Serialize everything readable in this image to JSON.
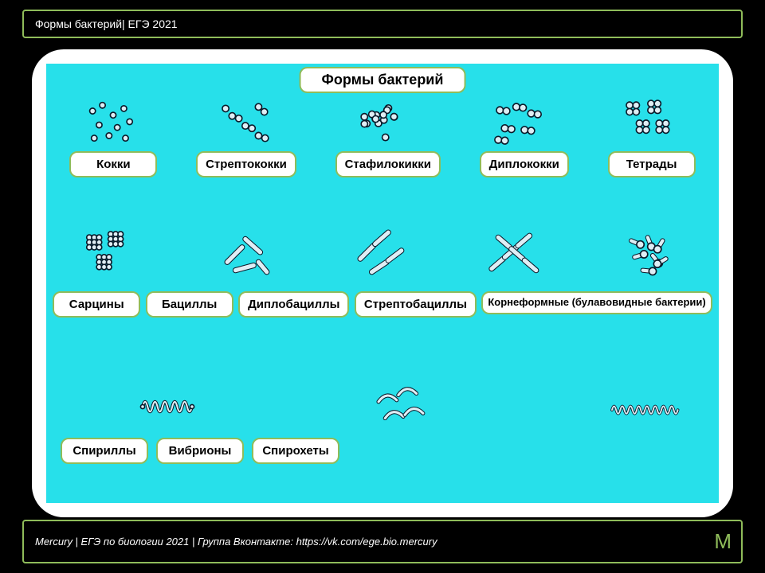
{
  "header": {
    "text": "Формы бактерий| ЕГЭ 2021"
  },
  "footer": {
    "text": "Mercury | ЕГЭ по биологии 2021 | Группа Вконтакте: https://vk.com/ege.bio.mercury",
    "logo": "M"
  },
  "colors": {
    "page_bg": "#000000",
    "accent": "#8fbc5a",
    "stage_bg": "#27e0ea",
    "card_bg": "#ffffff",
    "ink": "#0a1a2a",
    "ink_fill": "#dfeef5"
  },
  "infographic": {
    "title": "Формы бактерий",
    "rows": [
      {
        "items": [
          {
            "label": "Кокки",
            "shape": "cocci"
          },
          {
            "label": "Стрептококки",
            "shape": "strepto"
          },
          {
            "label": "Стафилокикки",
            "shape": "staphylo"
          },
          {
            "label": "Диплококки",
            "shape": "diplo"
          },
          {
            "label": "Тетрады",
            "shape": "tetrad"
          }
        ]
      },
      {
        "items": [
          {
            "label": "Сарцины",
            "shape": "sarcina"
          },
          {
            "label": "Бациллы",
            "shape": "bacilli"
          },
          {
            "label": "Диплобациллы",
            "shape": "diplobac"
          },
          {
            "label": "Стрептобациллы",
            "shape": "streptobac"
          },
          {
            "label": "Корнеформные (булавовидные бактерии)",
            "shape": "coryne",
            "small": true
          }
        ]
      },
      {
        "items": [
          {
            "label": "Спириллы",
            "shape": "spirilla"
          },
          {
            "label": "Вибрионы",
            "shape": "vibrio"
          },
          {
            "label": "Спирохеты",
            "shape": "spirochete"
          }
        ]
      }
    ]
  }
}
